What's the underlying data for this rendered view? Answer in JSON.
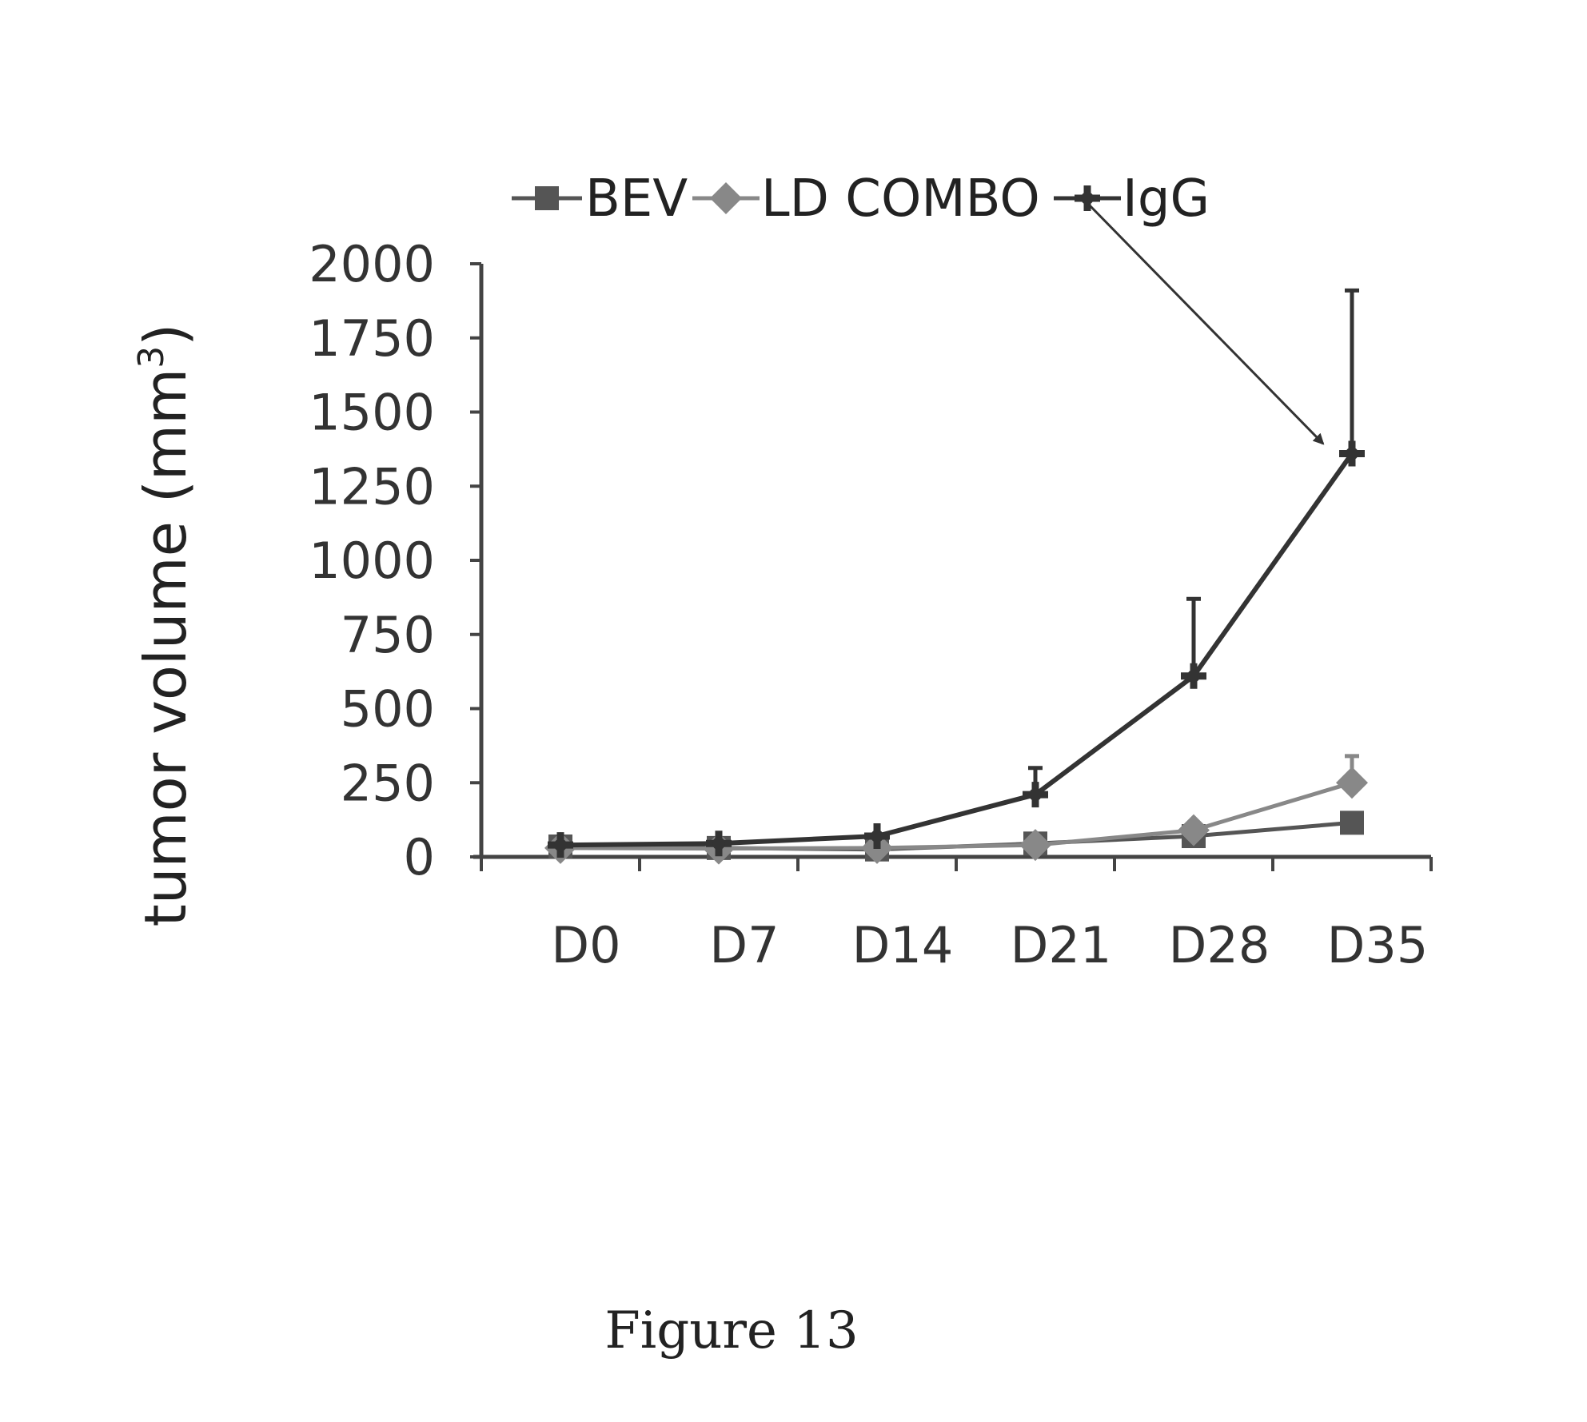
{
  "figure_caption": "Figure 13",
  "chart_data": {
    "type": "line",
    "title": "",
    "xlabel": "",
    "ylabel": "tumor volume (mm",
    "ylabel_superscript": "3",
    "ylabel_close": ")",
    "categories": [
      "D0",
      "D7",
      "D14",
      "D21",
      "D28",
      "D35"
    ],
    "ylim": [
      0,
      2000
    ],
    "yticks": [
      0,
      250,
      500,
      750,
      1000,
      1250,
      1500,
      1750,
      2000
    ],
    "ytick_labels": [
      "0",
      "250",
      "500",
      "750",
      "1000",
      "1250",
      "1500",
      "1750",
      "2000"
    ],
    "grid": false,
    "legend_position": "top",
    "series": [
      {
        "name": "BEV",
        "marker": "square",
        "color": "#555555",
        "values": [
          35,
          30,
          25,
          45,
          70,
          115
        ],
        "errors": [
          0,
          0,
          0,
          0,
          0,
          0
        ]
      },
      {
        "name": "LD COMBO",
        "marker": "diamond",
        "color": "#888888",
        "values": [
          30,
          28,
          30,
          40,
          90,
          250
        ],
        "errors": [
          0,
          0,
          0,
          0,
          0,
          90
        ]
      },
      {
        "name": "IgG",
        "marker": "cross",
        "color": "#333333",
        "values": [
          40,
          45,
          70,
          210,
          610,
          1360
        ],
        "errors": [
          0,
          0,
          0,
          90,
          260,
          550
        ]
      }
    ],
    "annotations": [
      {
        "type": "arrow",
        "from_legend": "IgG",
        "to": {
          "category": "D35",
          "value": 1420
        }
      }
    ]
  }
}
